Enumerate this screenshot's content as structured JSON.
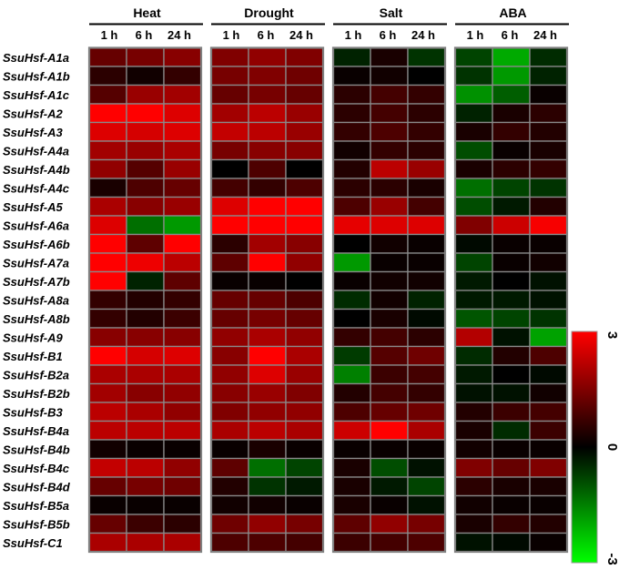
{
  "chart_data": {
    "type": "heatmap",
    "conditions": [
      "Heat",
      "Drought",
      "Salt",
      "ABA"
    ],
    "timepoints": [
      "1 h",
      "6 h",
      "24 h"
    ],
    "genes": [
      "SsuHsf-A1a",
      "SsuHsf-A1b",
      "SsuHsf-A1c",
      "SsuHsf-A2",
      "SsuHsf-A3",
      "SsuHsf-A4a",
      "SsuHsf-A4b",
      "SsuHsf-A4c",
      "SsuHsf-A5",
      "SsuHsf-A6a",
      "SsuHsf-A6b",
      "SsuHsf-A7a",
      "SsuHsf-A7b",
      "SsuHsf-A8a",
      "SsuHsf-A8b",
      "SsuHsf-A9",
      "SsuHsf-B1",
      "SsuHsf-B2a",
      "SsuHsf-B2b",
      "SsuHsf-B3",
      "SsuHsf-B4a",
      "SsuHsf-B4b",
      "SsuHsf-B4c",
      "SsuHsf-B4d",
      "SsuHsf-B5a",
      "SsuHsf-B5b",
      "SsuHsf-C1"
    ],
    "values": [
      [
        1.2,
        1.4,
        1.6,
        1.5,
        1.7,
        1.5,
        -0.4,
        0.3,
        -0.6,
        -0.8,
        -2.0,
        -0.5
      ],
      [
        0.5,
        0.2,
        0.6,
        1.4,
        1.5,
        1.3,
        0.1,
        0.2,
        0.0,
        -0.6,
        -1.8,
        -0.4
      ],
      [
        1.0,
        1.8,
        1.9,
        1.2,
        1.4,
        1.2,
        0.5,
        0.8,
        0.6,
        -1.7,
        -1.1,
        0.1
      ],
      [
        3.0,
        3.0,
        2.6,
        1.9,
        2.2,
        1.8,
        0.5,
        0.8,
        0.5,
        -0.4,
        0.3,
        0.5
      ],
      [
        2.6,
        2.5,
        2.6,
        2.3,
        2.2,
        1.8,
        0.6,
        0.9,
        0.6,
        0.3,
        0.6,
        0.4
      ],
      [
        1.9,
        1.8,
        2.0,
        1.4,
        1.6,
        1.6,
        0.2,
        0.6,
        0.5,
        -0.9,
        0.1,
        0.3
      ],
      [
        1.7,
        1.0,
        1.8,
        0.0,
        0.9,
        0.0,
        0.4,
        2.2,
        1.8,
        0.3,
        0.5,
        0.6
      ],
      [
        0.3,
        0.9,
        1.2,
        0.8,
        0.6,
        0.9,
        0.5,
        0.5,
        0.3,
        -1.3,
        -0.8,
        -0.6
      ],
      [
        2.0,
        1.6,
        1.8,
        2.6,
        3.0,
        3.0,
        0.9,
        1.8,
        0.8,
        -0.9,
        -0.3,
        0.4
      ],
      [
        2.6,
        -1.3,
        -1.8,
        3.0,
        3.0,
        3.0,
        2.7,
        2.6,
        2.6,
        1.5,
        2.4,
        2.9
      ],
      [
        3.0,
        1.1,
        3.0,
        0.5,
        1.9,
        1.6,
        0.0,
        0.2,
        0.1,
        -0.1,
        0.1,
        0.1
      ],
      [
        3.0,
        2.8,
        2.2,
        1.1,
        3.0,
        1.7,
        -1.8,
        0.1,
        0.1,
        -0.8,
        0.1,
        0.2
      ],
      [
        3.0,
        -0.4,
        1.1,
        0.1,
        0.1,
        0.0,
        0.1,
        0.2,
        0.2,
        -0.3,
        0.0,
        -0.2
      ],
      [
        0.6,
        0.4,
        0.6,
        1.2,
        1.2,
        0.9,
        -0.5,
        0.2,
        -0.4,
        -0.3,
        -0.3,
        -0.2
      ],
      [
        0.6,
        0.4,
        0.7,
        1.2,
        1.4,
        1.2,
        0.0,
        0.3,
        -0.1,
        -1.0,
        -0.8,
        -0.6
      ],
      [
        1.6,
        1.6,
        1.6,
        1.7,
        2.0,
        1.7,
        0.6,
        0.8,
        0.5,
        2.1,
        -0.2,
        -1.9
      ],
      [
        3.0,
        2.5,
        2.6,
        1.6,
        3.0,
        2.0,
        -0.7,
        1.0,
        1.3,
        -0.5,
        0.4,
        0.9
      ],
      [
        2.0,
        2.0,
        2.0,
        1.7,
        2.6,
        1.8,
        -1.5,
        0.7,
        0.8,
        -0.3,
        0.0,
        -0.1
      ],
      [
        1.9,
        1.6,
        1.7,
        1.6,
        1.8,
        1.5,
        0.4,
        0.8,
        0.6,
        -0.2,
        -0.2,
        0.2
      ],
      [
        2.2,
        2.0,
        1.7,
        1.5,
        1.7,
        1.7,
        0.9,
        1.2,
        1.3,
        0.4,
        0.7,
        0.8
      ],
      [
        2.2,
        2.2,
        2.2,
        2.0,
        2.2,
        2.0,
        2.4,
        3.0,
        2.0,
        0.3,
        -0.5,
        0.7
      ],
      [
        0.2,
        0.1,
        0.1,
        0.1,
        0.3,
        0.1,
        0.1,
        0.1,
        0.1,
        0.2,
        0.1,
        0.1
      ],
      [
        2.3,
        2.2,
        1.7,
        1.1,
        -1.3,
        -0.8,
        0.3,
        -0.9,
        -0.2,
        1.5,
        1.2,
        1.5
      ],
      [
        1.2,
        1.4,
        1.3,
        0.4,
        -0.6,
        -0.3,
        0.3,
        -0.3,
        -0.8,
        0.5,
        0.3,
        0.3
      ],
      [
        0.1,
        0.1,
        0.1,
        0.2,
        0.2,
        0.1,
        0.3,
        0.1,
        -0.2,
        0.2,
        0.1,
        0.1
      ],
      [
        1.2,
        0.7,
        0.5,
        1.3,
        1.7,
        1.4,
        1.1,
        1.7,
        1.4,
        0.3,
        0.6,
        0.4
      ],
      [
        2.0,
        2.0,
        2.0,
        0.9,
        0.9,
        0.8,
        0.7,
        0.8,
        0.9,
        -0.2,
        -0.1,
        0.1
      ]
    ],
    "colorbar": {
      "min": -3,
      "mid": 0,
      "max": 3,
      "labels": [
        "3",
        "0",
        "-3"
      ]
    },
    "colors": {
      "high": "#ff0000",
      "mid": "#000000",
      "low": "#00ff00",
      "cell_border": "#8a8a8a",
      "group_border": "#808080"
    }
  }
}
